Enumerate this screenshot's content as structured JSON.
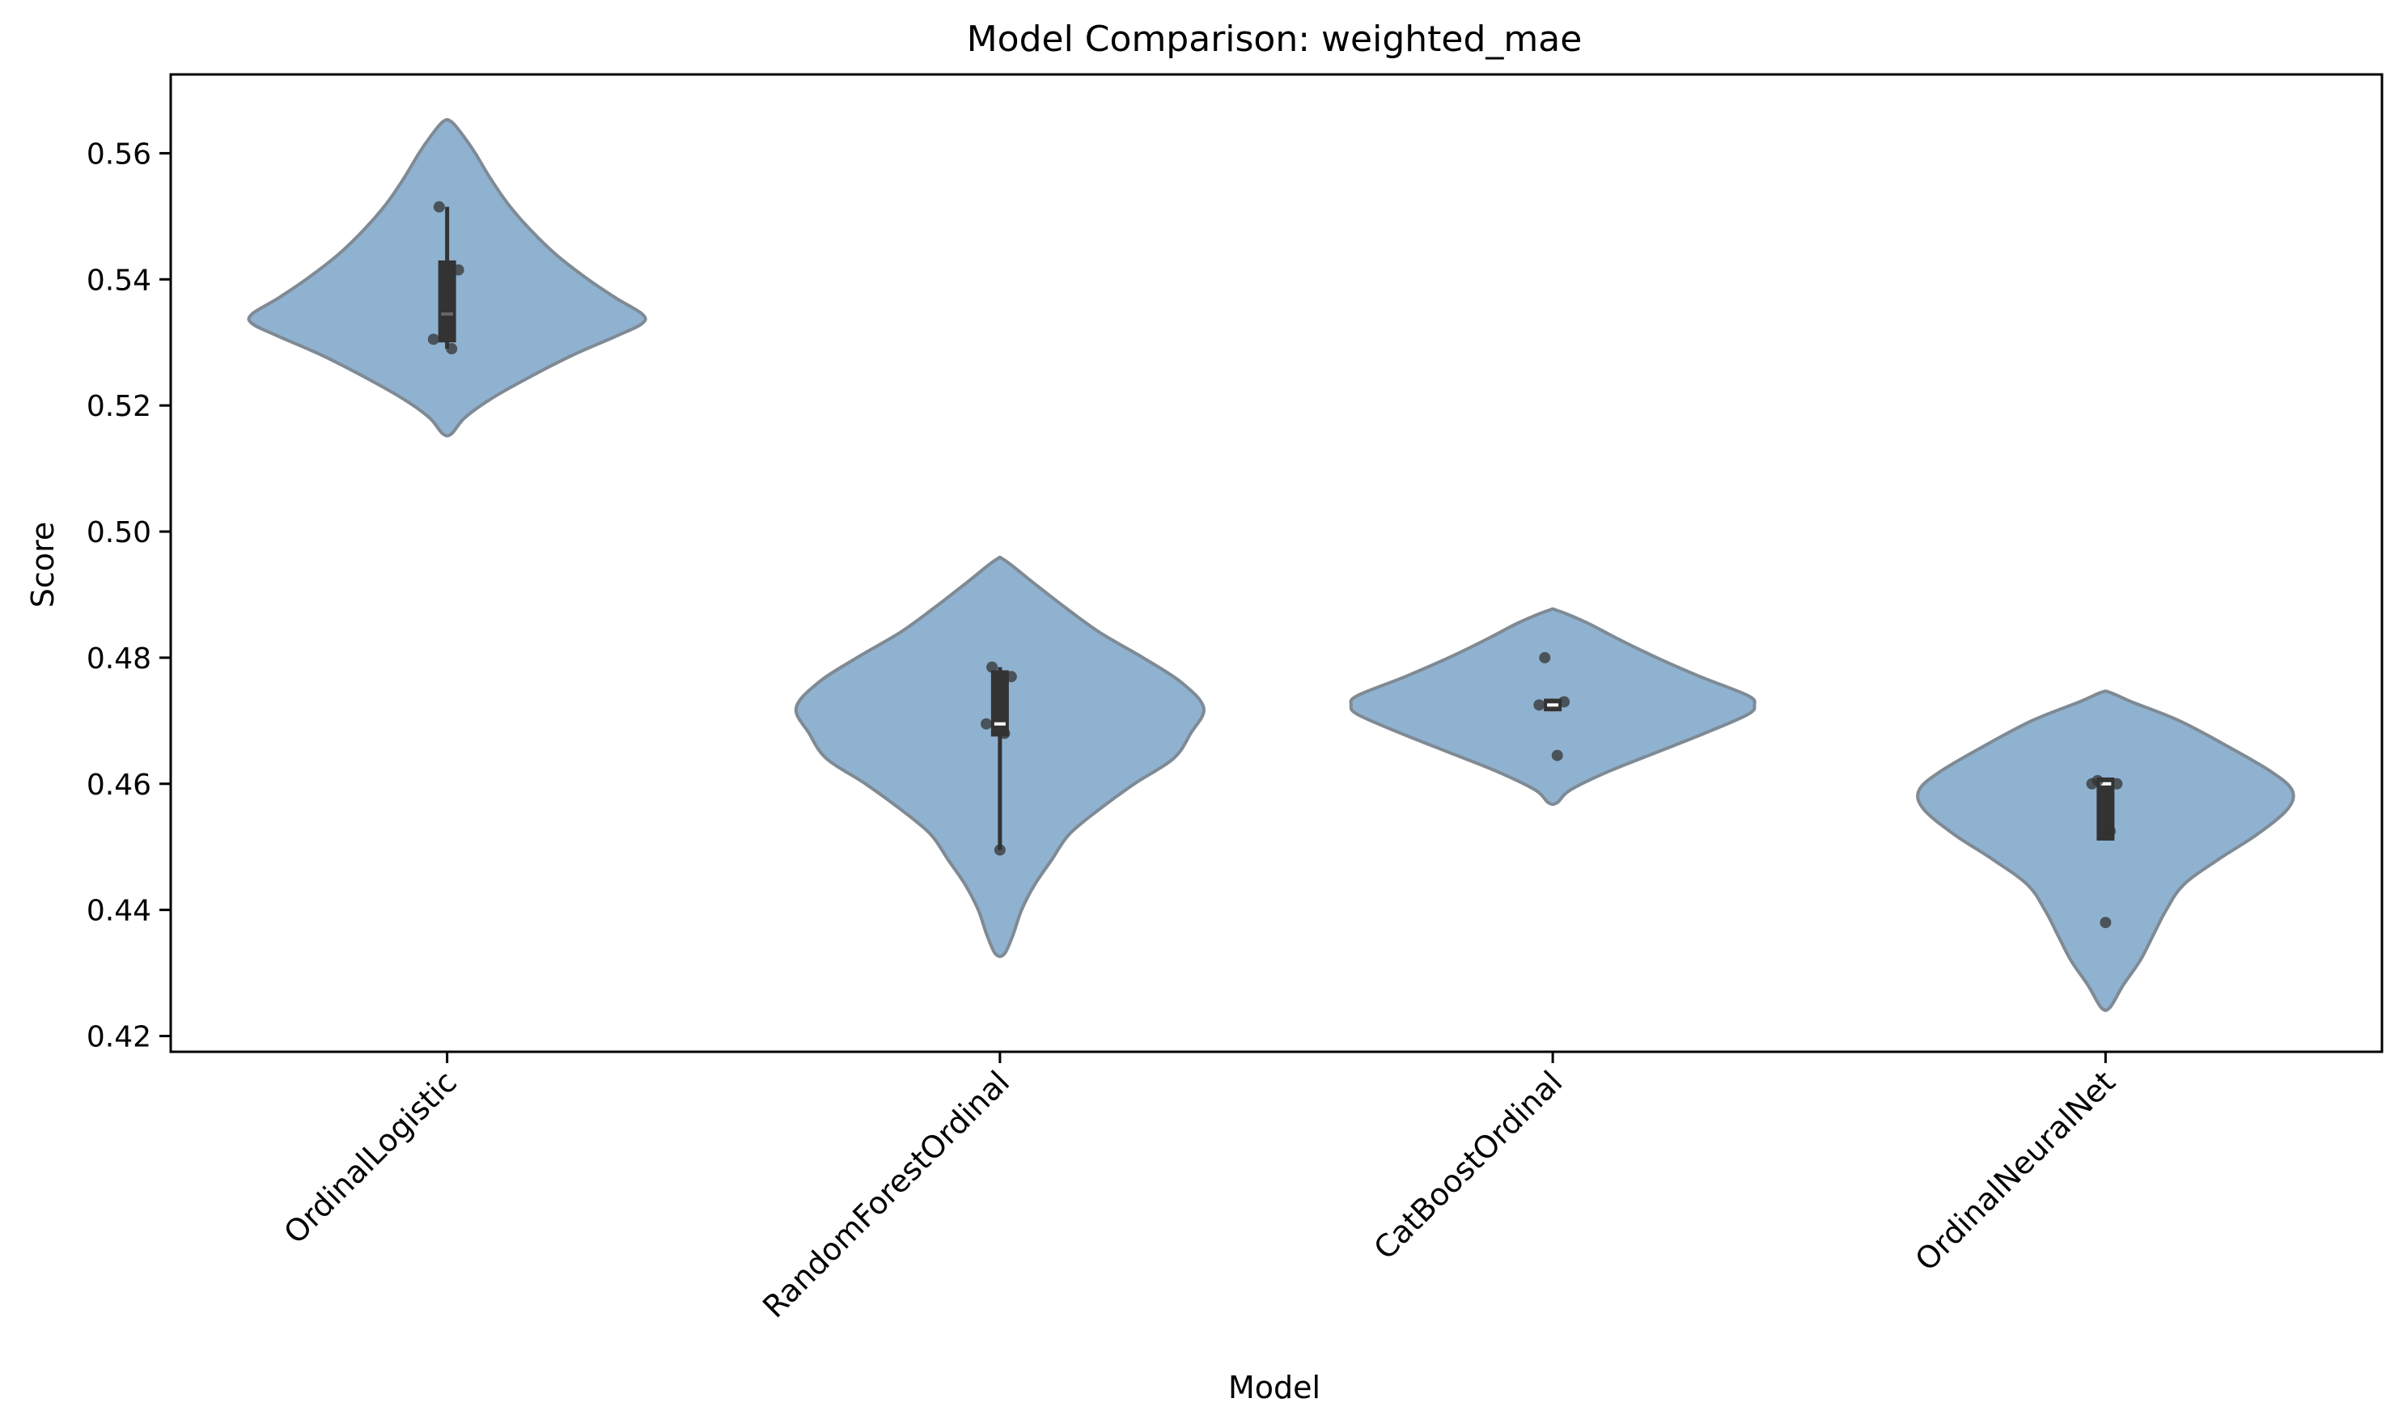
{
  "chart_data": {
    "type": "violin",
    "title": "Model Comparison: weighted_mae",
    "xlabel": "Model",
    "ylabel": "Score",
    "ylim": [
      0.4175,
      0.5725
    ],
    "yticks": [
      0.42,
      0.44,
      0.46,
      0.48,
      0.5,
      0.52,
      0.54,
      0.56
    ],
    "ytick_labels": [
      "0.42",
      "0.44",
      "0.46",
      "0.48",
      "0.50",
      "0.52",
      "0.54",
      "0.56"
    ],
    "grid": false,
    "legend": "none",
    "colors": {
      "violin_fill": "#8fb2d0",
      "violin_edge": "#7f8a94",
      "box": "#333333",
      "points": "#333333",
      "median": "#ffffff"
    },
    "categories": [
      "OrdinalLogistic",
      "RandomForestOrdinal",
      "CatBoostOrdinal",
      "OrdinalNeuralNet"
    ],
    "series": [
      {
        "category": "OrdinalLogistic",
        "points": [
          0.5515,
          0.5415,
          0.5305,
          0.529,
          0.5345
        ],
        "quartiles": [
          0.53,
          0.5345,
          0.543
        ],
        "whiskers": [
          0.529,
          0.5515
        ],
        "violin_range": [
          0.5155,
          0.565
        ],
        "violin_profile": [
          [
            0.5155,
            0.02
          ],
          [
            0.518,
            0.08
          ],
          [
            0.521,
            0.2
          ],
          [
            0.5245,
            0.38
          ],
          [
            0.528,
            0.58
          ],
          [
            0.531,
            0.78
          ],
          [
            0.533,
            0.9
          ],
          [
            0.5345,
            0.9
          ],
          [
            0.537,
            0.78
          ],
          [
            0.54,
            0.65
          ],
          [
            0.544,
            0.5
          ],
          [
            0.548,
            0.38
          ],
          [
            0.552,
            0.28
          ],
          [
            0.556,
            0.2
          ],
          [
            0.56,
            0.13
          ],
          [
            0.5625,
            0.08
          ],
          [
            0.565,
            0.02
          ]
        ]
      },
      {
        "category": "RandomForestOrdinal",
        "points": [
          0.4785,
          0.477,
          0.4695,
          0.468,
          0.4495
        ],
        "quartiles": [
          0.4675,
          0.4695,
          0.478
        ],
        "whiskers": [
          0.4495,
          0.4785
        ],
        "violin_range": [
          0.433,
          0.4955
        ],
        "violin_profile": [
          [
            0.433,
            0.02
          ],
          [
            0.436,
            0.06
          ],
          [
            0.44,
            0.1
          ],
          [
            0.444,
            0.16
          ],
          [
            0.448,
            0.24
          ],
          [
            0.452,
            0.32
          ],
          [
            0.456,
            0.46
          ],
          [
            0.46,
            0.62
          ],
          [
            0.464,
            0.8
          ],
          [
            0.468,
            0.88
          ],
          [
            0.472,
            0.94
          ],
          [
            0.476,
            0.84
          ],
          [
            0.48,
            0.66
          ],
          [
            0.484,
            0.46
          ],
          [
            0.488,
            0.3
          ],
          [
            0.492,
            0.15
          ],
          [
            0.4955,
            0.02
          ]
        ]
      },
      {
        "category": "CatBoostOrdinal",
        "points": [
          0.48,
          0.473,
          0.4725,
          0.4645
        ],
        "quartiles": [
          0.4715,
          0.4725,
          0.4735
        ],
        "whiskers": [
          0.4715,
          0.4735
        ],
        "violin_range": [
          0.457,
          0.4875
        ],
        "violin_profile": [
          [
            0.457,
            0.02
          ],
          [
            0.459,
            0.08
          ],
          [
            0.462,
            0.26
          ],
          [
            0.465,
            0.48
          ],
          [
            0.468,
            0.7
          ],
          [
            0.471,
            0.9
          ],
          [
            0.4725,
            0.93
          ],
          [
            0.474,
            0.9
          ],
          [
            0.477,
            0.68
          ],
          [
            0.48,
            0.48
          ],
          [
            0.483,
            0.3
          ],
          [
            0.4855,
            0.16
          ],
          [
            0.4875,
            0.02
          ]
        ]
      },
      {
        "category": "OrdinalNeuralNet",
        "points": [
          0.4605,
          0.46,
          0.46,
          0.4525,
          0.438
        ],
        "quartiles": [
          0.451,
          0.46,
          0.461
        ],
        "whiskers": [
          0.451,
          0.461
        ],
        "violin_range": [
          0.4245,
          0.4745
        ],
        "violin_profile": [
          [
            0.4245,
            0.02
          ],
          [
            0.428,
            0.08
          ],
          [
            0.432,
            0.16
          ],
          [
            0.436,
            0.22
          ],
          [
            0.44,
            0.28
          ],
          [
            0.444,
            0.36
          ],
          [
            0.448,
            0.52
          ],
          [
            0.452,
            0.7
          ],
          [
            0.456,
            0.84
          ],
          [
            0.459,
            0.86
          ],
          [
            0.462,
            0.76
          ],
          [
            0.466,
            0.56
          ],
          [
            0.47,
            0.34
          ],
          [
            0.473,
            0.12
          ],
          [
            0.4745,
            0.02
          ]
        ]
      }
    ]
  }
}
